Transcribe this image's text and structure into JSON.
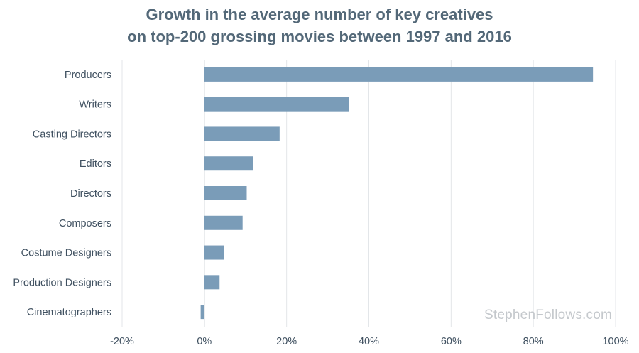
{
  "chart_data": {
    "type": "bar",
    "orientation": "horizontal",
    "title_lines": [
      "Growth in the average number of key creatives",
      "on top-200 grossing movies between 1997 and 2016"
    ],
    "categories": [
      "Producers",
      "Writers",
      "Casting Directors",
      "Editors",
      "Directors",
      "Composers",
      "Costume Designers",
      "Production Designers",
      "Cinematographers"
    ],
    "values": [
      94.5,
      35.2,
      18.3,
      11.8,
      10.3,
      9.3,
      4.7,
      3.7,
      -0.9
    ],
    "xlim": [
      -20,
      100
    ],
    "x_ticks": [
      -20,
      0,
      20,
      40,
      60,
      80,
      100
    ],
    "x_tick_labels": [
      "-20%",
      "0%",
      "20%",
      "40%",
      "60%",
      "80%",
      "100%"
    ],
    "grid": "vertical",
    "bar_color": "#7a9cb8"
  },
  "watermark": "StephenFollows.com"
}
